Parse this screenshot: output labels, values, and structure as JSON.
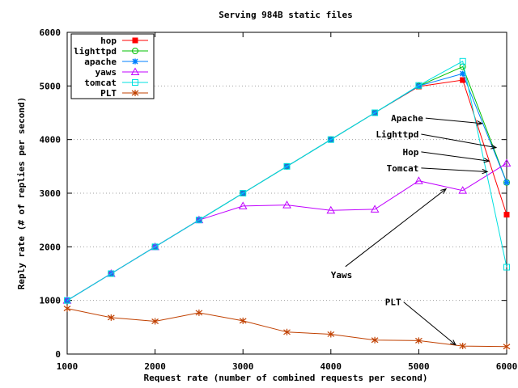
{
  "chart_data": {
    "type": "line",
    "title": "Serving 984B static files",
    "xlabel": "Request rate (number of combined requests per second)",
    "ylabel": "Reply rate (# of replies per second)",
    "xlim": [
      1000,
      6000
    ],
    "ylim": [
      0,
      6000
    ],
    "xticks": [
      1000,
      2000,
      3000,
      4000,
      5000,
      6000
    ],
    "yticks": [
      0,
      1000,
      2000,
      3000,
      4000,
      5000,
      6000
    ],
    "grid": "horizontal dotted",
    "legend_position": "top-left",
    "series": [
      {
        "name": "hop",
        "color": "#ff0000",
        "marker": "filled-square",
        "points": [
          [
            1000,
            1000
          ],
          [
            1500,
            1500
          ],
          [
            2000,
            2000
          ],
          [
            2500,
            2500
          ],
          [
            3000,
            3000
          ],
          [
            3500,
            3500
          ],
          [
            4000,
            4000
          ],
          [
            4500,
            4500
          ],
          [
            5000,
            4990
          ],
          [
            5500,
            5110
          ],
          [
            6000,
            2600
          ]
        ]
      },
      {
        "name": "lighttpd",
        "color": "#00c000",
        "marker": "circle",
        "points": [
          [
            1000,
            1000
          ],
          [
            1500,
            1500
          ],
          [
            2000,
            2000
          ],
          [
            2500,
            2500
          ],
          [
            3000,
            3000
          ],
          [
            3500,
            3500
          ],
          [
            4000,
            4000
          ],
          [
            4500,
            4500
          ],
          [
            5000,
            5000
          ],
          [
            5500,
            5360
          ],
          [
            6000,
            3200
          ]
        ]
      },
      {
        "name": "apache",
        "color": "#0080ff",
        "marker": "asterisk",
        "points": [
          [
            1000,
            1000
          ],
          [
            1500,
            1500
          ],
          [
            2000,
            2000
          ],
          [
            2500,
            2500
          ],
          [
            3000,
            3000
          ],
          [
            3500,
            3500
          ],
          [
            4000,
            4000
          ],
          [
            4500,
            4500
          ],
          [
            5000,
            5000
          ],
          [
            5500,
            5230
          ],
          [
            6000,
            3200
          ]
        ]
      },
      {
        "name": "yaws",
        "color": "#c000ff",
        "marker": "triangle",
        "points": [
          [
            1000,
            1000
          ],
          [
            1500,
            1500
          ],
          [
            2000,
            2000
          ],
          [
            2500,
            2500
          ],
          [
            3000,
            2760
          ],
          [
            3500,
            2780
          ],
          [
            4000,
            2680
          ],
          [
            4500,
            2700
          ],
          [
            5000,
            3230
          ],
          [
            5500,
            3050
          ],
          [
            6000,
            3560
          ]
        ]
      },
      {
        "name": "tomcat",
        "color": "#00e0e0",
        "marker": "square",
        "points": [
          [
            1000,
            1000
          ],
          [
            1500,
            1500
          ],
          [
            2000,
            2000
          ],
          [
            2500,
            2500
          ],
          [
            3000,
            3000
          ],
          [
            3500,
            3500
          ],
          [
            4000,
            4000
          ],
          [
            4500,
            4500
          ],
          [
            5000,
            5010
          ],
          [
            5500,
            5460
          ],
          [
            6000,
            1620
          ]
        ]
      },
      {
        "name": "PLT",
        "color": "#c04000",
        "marker": "star",
        "points": [
          [
            1000,
            850
          ],
          [
            1500,
            680
          ],
          [
            2000,
            610
          ],
          [
            2500,
            770
          ],
          [
            3000,
            620
          ],
          [
            3500,
            410
          ],
          [
            4000,
            370
          ],
          [
            4500,
            260
          ],
          [
            5000,
            250
          ],
          [
            5500,
            150
          ],
          [
            6000,
            140
          ]
        ]
      }
    ],
    "annotations": [
      {
        "text": "Apache",
        "text_at": [
          5050,
          4400
        ],
        "arrow_to": [
          5720,
          4300
        ],
        "anchor": "end"
      },
      {
        "text": "Lighttpd",
        "text_at": [
          5000,
          4100
        ],
        "arrow_to": [
          5880,
          3850
        ],
        "anchor": "end"
      },
      {
        "text": "Hop",
        "text_at": [
          5000,
          3770
        ],
        "arrow_to": [
          5800,
          3600
        ],
        "anchor": "end"
      },
      {
        "text": "Tomcat",
        "text_at": [
          5000,
          3470
        ],
        "arrow_to": [
          5780,
          3400
        ],
        "anchor": "end"
      },
      {
        "text": "Yaws",
        "text_at": [
          4000,
          1480
        ],
        "arrow_to": [
          5310,
          3080
        ],
        "anchor": "start"
      },
      {
        "text": "PLT",
        "text_at": [
          4800,
          970
        ],
        "arrow_to": [
          5420,
          170
        ],
        "anchor": "end"
      }
    ]
  }
}
